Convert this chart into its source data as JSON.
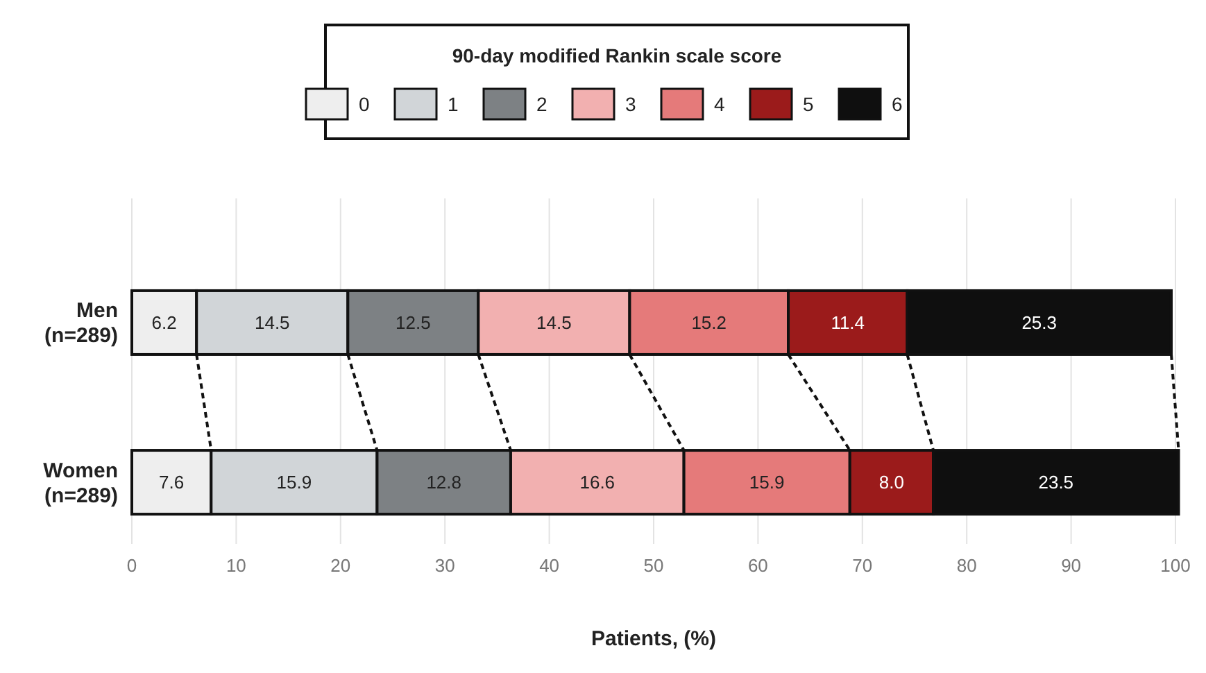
{
  "chart_data": {
    "type": "bar",
    "orientation": "horizontal",
    "stacked": true,
    "legend": "top",
    "grid": "x",
    "legend_title": "90-day modified Rankin scale score",
    "xlabel": "Patients, (%)",
    "categories": [
      "Men\n(n=289)",
      "Women\n(n=289)"
    ],
    "xlim": [
      0,
      100
    ],
    "xticks": [
      0,
      10,
      20,
      30,
      40,
      50,
      60,
      70,
      80,
      90,
      100
    ],
    "series": [
      {
        "name": "0",
        "color": "#eeeeee",
        "values": [
          6.2,
          7.6
        ],
        "value_labels": [
          "6.2",
          "7.6"
        ]
      },
      {
        "name": "1",
        "color": "#d1d5d8",
        "values": [
          14.5,
          15.9
        ],
        "value_labels": [
          "14.5",
          "15.9"
        ]
      },
      {
        "name": "2",
        "color": "#7d8184",
        "values": [
          12.5,
          12.8
        ],
        "value_labels": [
          "12.5",
          "12.8"
        ]
      },
      {
        "name": "3",
        "color": "#f2b0b0",
        "values": [
          14.5,
          16.6
        ],
        "value_labels": [
          "14.5",
          "16.6"
        ]
      },
      {
        "name": "4",
        "color": "#e57a7a",
        "values": [
          15.2,
          15.9
        ],
        "value_labels": [
          "15.2",
          "15.9"
        ]
      },
      {
        "name": "5",
        "color": "#9b1b1b",
        "values": [
          11.4,
          8.0
        ],
        "value_labels": [
          "11.4",
          "8.0"
        ]
      },
      {
        "name": "6",
        "color": "#0f0f0f",
        "values": [
          25.3,
          23.5
        ],
        "value_labels": [
          "25.3",
          "23.5"
        ]
      }
    ]
  }
}
